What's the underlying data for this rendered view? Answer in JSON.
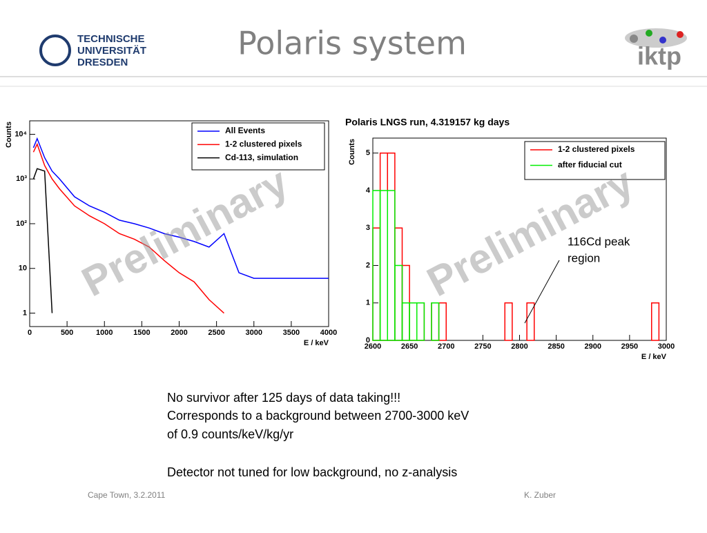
{
  "header": {
    "title": "Polaris system",
    "university": [
      "TECHNISCHE",
      "UNIVERSITÄT",
      "DRESDEN"
    ],
    "logo": "iktp"
  },
  "chart_data": [
    {
      "type": "line",
      "log": true,
      "ylabel": "Counts",
      "xlabel": "E / keV",
      "watermark": "Preliminary",
      "legend": "top-right",
      "x": [
        50,
        100,
        200,
        300,
        400,
        600,
        800,
        1000,
        1200,
        1400,
        1600,
        1800,
        2000,
        2200,
        2400,
        2600,
        2800,
        3000,
        3200,
        3400,
        3600,
        3800,
        4000
      ],
      "series": [
        {
          "name": "All Events",
          "color": "#0000ff",
          "values": [
            5000,
            8000,
            3000,
            1500,
            1000,
            400,
            250,
            180,
            120,
            100,
            80,
            60,
            50,
            40,
            30,
            60,
            8,
            6,
            6,
            6,
            6,
            6,
            6
          ]
        },
        {
          "name": "1-2 clustered pixels",
          "color": "#ff0000",
          "values": [
            4000,
            6000,
            2000,
            1000,
            600,
            250,
            150,
            100,
            60,
            45,
            30,
            15,
            8,
            5,
            2,
            1,
            null,
            null,
            null,
            null,
            null,
            null,
            null
          ]
        },
        {
          "name": "Cd-113, simulation",
          "color": "#000000",
          "values": [
            1000,
            1700,
            1500,
            1,
            null,
            null,
            null,
            null,
            null,
            null,
            null,
            null,
            null,
            null,
            null,
            null,
            null,
            null,
            null,
            null,
            null,
            null,
            null
          ]
        }
      ],
      "xlim": [
        0,
        4000
      ],
      "xticks": [
        0,
        500,
        1000,
        1500,
        2000,
        2500,
        3000,
        3500,
        4000
      ],
      "ylim": [
        0.5,
        20000
      ],
      "yticks": [
        1,
        10,
        {
          "value": 100,
          "label": "10²"
        },
        {
          "value": 1000,
          "label": "10³"
        },
        {
          "value": 10000,
          "label": "10⁴"
        }
      ]
    },
    {
      "type": "histogram",
      "title": "Polaris LNGS run, 4.319157 kg days",
      "ylabel": "Counts",
      "xlabel": "E / keV",
      "watermark": "Preliminary",
      "legend": "top-right",
      "annotation": [
        "116Cd peak",
        "region"
      ],
      "bins": [
        2600,
        2610,
        2620,
        2630,
        2640,
        2650,
        2660,
        2670,
        2680,
        2690,
        2700,
        2710,
        2720,
        2730,
        2740,
        2750,
        2760,
        2770,
        2780,
        2790,
        2800,
        2810,
        2820,
        2830,
        2840,
        2850,
        2860,
        2870,
        2880,
        2890,
        2900,
        2910,
        2920,
        2930,
        2940,
        2950,
        2960,
        2970,
        2980,
        2990,
        3000
      ],
      "series": [
        {
          "name": "1-2 clustered pixels",
          "color": "#ff0000",
          "values": [
            3,
            5,
            5,
            3,
            2,
            1,
            1,
            0,
            1,
            1,
            0,
            0,
            0,
            0,
            0,
            0,
            0,
            0,
            1,
            0,
            0,
            1,
            0,
            0,
            0,
            0,
            0,
            0,
            0,
            0,
            0,
            0,
            0,
            0,
            0,
            0,
            0,
            0,
            1,
            0
          ]
        },
        {
          "name": "after fiducial cut",
          "color": "#00ee00",
          "values": [
            4,
            4,
            4,
            2,
            1,
            1,
            1,
            0,
            1,
            0,
            0,
            0,
            0,
            0,
            0,
            0,
            0,
            0,
            0,
            0,
            0,
            0,
            0,
            0,
            0,
            0,
            0,
            0,
            0,
            0,
            0,
            0,
            0,
            0,
            0,
            0,
            0,
            0,
            0,
            0
          ]
        }
      ],
      "xlim": [
        2600,
        3000
      ],
      "xticks": [
        2600,
        2650,
        2700,
        2750,
        2800,
        2850,
        2900,
        2950,
        3000
      ],
      "ylim": [
        0,
        5.4
      ],
      "yticks": [
        0,
        1,
        2,
        3,
        4,
        5
      ]
    }
  ],
  "body": [
    "No survivor after 125 days of data taking!!!",
    "Corresponds to a background between 2700-3000 keV",
    "of 0.9 counts/keV/kg/yr",
    "Detector not tuned for low background, no z-analysis"
  ],
  "footer": {
    "left": "Cape Town, 3.2.2011",
    "right": "K. Zuber"
  }
}
